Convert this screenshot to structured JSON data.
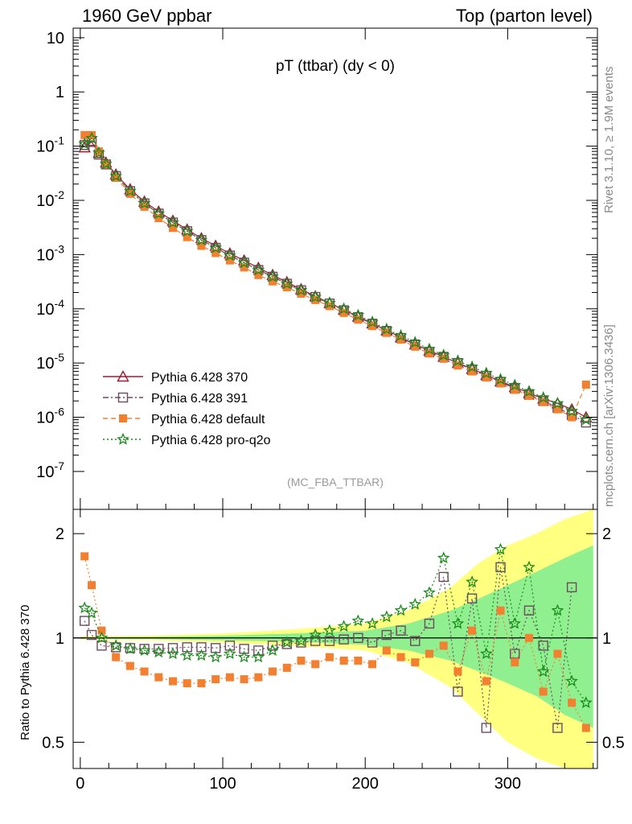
{
  "header": {
    "left": "1960 GeV ppbar",
    "right": "Top (parton level)"
  },
  "side_labels": {
    "rivet": "Rivet 3.1.10, ≥ 1.9M events",
    "mcplots": "mcplots.cern.ch [arXiv:1306.3436]"
  },
  "chart_data": [
    {
      "type": "scatter",
      "title": "pT (ttbar) (dy < 0)",
      "watermark": "(MC_FBA_TTBAR)",
      "yscale": "log",
      "xlim": [
        -5,
        363
      ],
      "ylim": [
        2e-08,
        15
      ],
      "yticks": [
        {
          "v": 1e-07,
          "label": "10^-7"
        },
        {
          "v": 1e-06,
          "label": "10^-6"
        },
        {
          "v": 1e-05,
          "label": "10^-5"
        },
        {
          "v": 0.0001,
          "label": "10^-4"
        },
        {
          "v": 0.001,
          "label": "10^-3"
        },
        {
          "v": 0.01,
          "label": "10^-2"
        },
        {
          "v": 0.1,
          "label": "10^-1"
        },
        {
          "v": 1,
          "label": "1"
        },
        {
          "v": 10,
          "label": "10"
        }
      ],
      "legend_position": "bottom-left",
      "series": [
        {
          "name": "Pythia 6.428 370",
          "color": "#9b1b30",
          "marker": "triangle-open",
          "line": "solid",
          "x": [
            3,
            8,
            13,
            18,
            25,
            35,
            45,
            55,
            65,
            75,
            85,
            95,
            105,
            115,
            125,
            135,
            145,
            155,
            165,
            175,
            185,
            195,
            205,
            215,
            225,
            235,
            245,
            255,
            265,
            275,
            285,
            295,
            305,
            315,
            325,
            335,
            345,
            355
          ],
          "y": [
            0.095,
            0.12,
            0.075,
            0.05,
            0.03,
            0.016,
            0.0095,
            0.0062,
            0.0042,
            0.0029,
            0.002,
            0.00145,
            0.00105,
            0.00078,
            0.00057,
            0.00042,
            0.00031,
            0.00023,
            0.00017,
            0.000128,
            9.6e-05,
            7.2e-05,
            5.4e-05,
            4e-05,
            3e-05,
            2.2e-05,
            1.7e-05,
            1.3e-05,
            1e-05,
            7.8e-06,
            6e-06,
            4.6e-06,
            3.6e-06,
            2.8e-06,
            2.2e-06,
            1.8e-06,
            1.4e-06,
            1e-06
          ]
        },
        {
          "name": "Pythia 6.428 391",
          "color": "#6e4a5e",
          "marker": "square-open",
          "line": "dashdot",
          "x": [
            3,
            8,
            13,
            18,
            25,
            35,
            45,
            55,
            65,
            75,
            85,
            95,
            105,
            115,
            125,
            135,
            145,
            155,
            165,
            175,
            185,
            195,
            205,
            215,
            225,
            235,
            245,
            255,
            265,
            275,
            285,
            295,
            305,
            315,
            325,
            335,
            345,
            355
          ],
          "y": [
            0.105,
            0.125,
            0.07,
            0.046,
            0.028,
            0.0148,
            0.0088,
            0.0057,
            0.0039,
            0.0027,
            0.00185,
            0.00133,
            0.00096,
            0.00071,
            0.00052,
            0.00039,
            0.00029,
            0.00022,
            0.000165,
            0.000125,
            9.4e-05,
            7e-05,
            5.3e-05,
            3.9e-05,
            2.9e-05,
            2.2e-05,
            1.6e-05,
            1.3e-05,
            1e-05,
            7.5e-06,
            5.8e-06,
            4.5e-06,
            3.4e-06,
            2.6e-06,
            2e-06,
            1.5e-06,
            1.1e-06,
            8e-07
          ]
        },
        {
          "name": "Pythia 6.428 default",
          "color": "#f28030",
          "marker": "square-filled",
          "line": "dashed",
          "x": [
            3,
            8,
            13,
            18,
            25,
            35,
            45,
            55,
            65,
            75,
            85,
            95,
            105,
            115,
            125,
            135,
            145,
            155,
            165,
            175,
            185,
            195,
            205,
            215,
            225,
            235,
            245,
            255,
            265,
            275,
            285,
            295,
            305,
            315,
            325,
            335,
            345,
            355
          ],
          "y": [
            0.16,
            0.16,
            0.08,
            0.046,
            0.026,
            0.0132,
            0.0076,
            0.0047,
            0.0031,
            0.0021,
            0.00145,
            0.00107,
            0.00078,
            0.00058,
            0.00042,
            0.00032,
            0.00025,
            0.00019,
            0.000145,
            0.000112,
            8.4e-05,
            6.3e-05,
            4.8e-05,
            3.6e-05,
            2.7e-05,
            2e-05,
            1.5e-05,
            1.2e-05,
            9e-06,
            7e-06,
            5.4e-06,
            4.2e-06,
            3.2e-06,
            2.5e-06,
            1.9e-06,
            1.4e-06,
            1e-06,
            4e-06
          ]
        },
        {
          "name": "Pythia 6.428 pro-q2o",
          "color": "#1a8a1a",
          "marker": "star-open",
          "line": "dotted",
          "x": [
            3,
            8,
            13,
            18,
            25,
            35,
            45,
            55,
            65,
            75,
            85,
            95,
            105,
            115,
            125,
            135,
            145,
            155,
            165,
            175,
            185,
            195,
            205,
            215,
            225,
            235,
            245,
            255,
            265,
            275,
            285,
            295,
            305,
            315,
            325,
            335,
            345,
            355
          ],
          "y": [
            0.11,
            0.14,
            0.075,
            0.047,
            0.028,
            0.0148,
            0.0088,
            0.0057,
            0.0039,
            0.0027,
            0.00185,
            0.00133,
            0.00096,
            0.00071,
            0.00052,
            0.00039,
            0.00029,
            0.00022,
            0.000165,
            0.000128,
            0.0001,
            7.6e-05,
            5.7e-05,
            4.2e-05,
            3.2e-05,
            2.4e-05,
            1.8e-05,
            1.4e-05,
            1.1e-05,
            8.5e-06,
            6.5e-06,
            5e-06,
            3.9e-06,
            3e-06,
            2.3e-06,
            1.8e-06,
            1.3e-06,
            9e-07
          ]
        }
      ]
    },
    {
      "type": "scatter",
      "ylabel": "Ratio to Pythia 6.428 370",
      "xlabel": "",
      "xlim": [
        -5,
        363
      ],
      "ylim": [
        0.42,
        2.35
      ],
      "yscale": "log",
      "reference": 1,
      "xticks": [
        {
          "v": 0,
          "label": "0"
        },
        {
          "v": 100,
          "label": "100"
        },
        {
          "v": 200,
          "label": "200"
        },
        {
          "v": 300,
          "label": "300"
        }
      ],
      "yticks": [
        {
          "v": 0.5,
          "label": "0.5"
        },
        {
          "v": 1,
          "label": "1"
        },
        {
          "v": 2,
          "label": "2"
        }
      ],
      "uncertainty_bands": [
        {
          "name": "wide band",
          "color": "#ffff80",
          "x": [
            0,
            50,
            100,
            150,
            200,
            230,
            260,
            280,
            300,
            320,
            340,
            360
          ],
          "lo": [
            0.99,
            0.985,
            0.97,
            0.95,
            0.92,
            0.85,
            0.72,
            0.6,
            0.5,
            0.45,
            0.42,
            0.42
          ],
          "hi": [
            1.01,
            1.015,
            1.03,
            1.06,
            1.1,
            1.2,
            1.4,
            1.65,
            1.85,
            2.0,
            2.2,
            2.35
          ]
        },
        {
          "name": "narrow band",
          "color": "#90f090",
          "x": [
            0,
            50,
            100,
            150,
            200,
            230,
            260,
            280,
            300,
            320,
            340,
            360
          ],
          "lo": [
            0.995,
            0.993,
            0.985,
            0.975,
            0.955,
            0.92,
            0.86,
            0.8,
            0.74,
            0.68,
            0.6,
            0.55
          ],
          "hi": [
            1.005,
            1.007,
            1.015,
            1.03,
            1.05,
            1.1,
            1.2,
            1.3,
            1.42,
            1.55,
            1.7,
            1.85
          ]
        }
      ],
      "series": [
        {
          "name": "Pythia 6.428 391",
          "color": "#6e4a5e",
          "marker": "square-open",
          "x": [
            3,
            8,
            15,
            25,
            35,
            45,
            55,
            65,
            75,
            85,
            95,
            105,
            115,
            125,
            135,
            145,
            155,
            165,
            175,
            185,
            195,
            205,
            215,
            225,
            235,
            245,
            255,
            265,
            275,
            285,
            295,
            305,
            315,
            325,
            335,
            345
          ],
          "y": [
            1.12,
            1.02,
            0.95,
            0.94,
            0.935,
            0.93,
            0.93,
            0.935,
            0.94,
            0.94,
            0.935,
            0.95,
            0.93,
            0.92,
            0.95,
            0.96,
            0.97,
            0.98,
            0.98,
            0.99,
            1.0,
            0.97,
            1.02,
            1.05,
            0.98,
            1.1,
            1.5,
            0.7,
            1.3,
            0.55,
            1.6,
            0.9,
            1.2,
            0.95,
            0.55,
            1.4
          ]
        },
        {
          "name": "Pythia 6.428 default",
          "color": "#f28030",
          "marker": "square-filled",
          "x": [
            3,
            8,
            15,
            25,
            35,
            45,
            55,
            65,
            75,
            85,
            95,
            105,
            115,
            125,
            135,
            145,
            155,
            165,
            175,
            185,
            195,
            205,
            215,
            225,
            235,
            245,
            255,
            265,
            275,
            285,
            295,
            305,
            315,
            325,
            335,
            345,
            355
          ],
          "y": [
            1.72,
            1.42,
            1.05,
            0.88,
            0.83,
            0.8,
            0.77,
            0.75,
            0.74,
            0.74,
            0.76,
            0.77,
            0.76,
            0.77,
            0.8,
            0.82,
            0.86,
            0.84,
            0.88,
            0.86,
            0.86,
            0.84,
            0.92,
            0.88,
            0.85,
            0.9,
            0.95,
            0.8,
            1.05,
            0.75,
            1.2,
            0.85,
            1.0,
            0.7,
            0.9,
            0.65,
            0.55
          ]
        },
        {
          "name": "Pythia 6.428 pro-q2o",
          "color": "#1a8a1a",
          "marker": "star-open",
          "x": [
            3,
            8,
            15,
            25,
            35,
            45,
            55,
            65,
            75,
            85,
            95,
            105,
            115,
            125,
            135,
            145,
            155,
            165,
            175,
            185,
            195,
            205,
            215,
            225,
            235,
            245,
            255,
            265,
            275,
            285,
            295,
            305,
            315,
            325,
            335,
            345,
            355
          ],
          "y": [
            1.22,
            1.18,
            1.0,
            0.95,
            0.93,
            0.92,
            0.91,
            0.9,
            0.89,
            0.89,
            0.88,
            0.9,
            0.88,
            0.88,
            0.92,
            0.97,
            0.98,
            1.02,
            1.05,
            1.08,
            1.12,
            1.1,
            1.15,
            1.2,
            1.25,
            1.35,
            1.7,
            1.1,
            1.45,
            0.9,
            1.8,
            1.1,
            1.6,
            0.8,
            1.2,
            0.75,
            0.65
          ]
        }
      ]
    }
  ]
}
